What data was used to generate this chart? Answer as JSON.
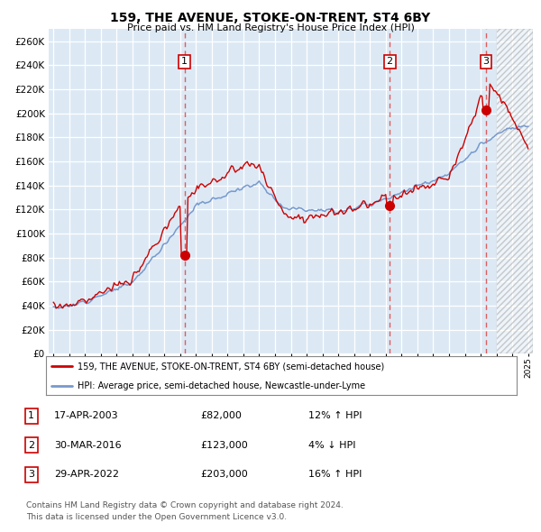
{
  "title": "159, THE AVENUE, STOKE-ON-TRENT, ST4 6BY",
  "subtitle": "Price paid vs. HM Land Registry's House Price Index (HPI)",
  "ylabel_ticks": [
    0,
    20000,
    40000,
    60000,
    80000,
    100000,
    120000,
    140000,
    160000,
    180000,
    200000,
    220000,
    240000,
    260000
  ],
  "xlim": [
    1994.7,
    2025.3
  ],
  "ylim": [
    0,
    270000
  ],
  "sale_dates": [
    2003.29,
    2016.25,
    2022.33
  ],
  "sale_prices": [
    82000,
    123000,
    203000
  ],
  "sale_labels": [
    "1",
    "2",
    "3"
  ],
  "sale_date_strs": [
    "17-APR-2003",
    "30-MAR-2016",
    "29-APR-2022"
  ],
  "sale_price_strs": [
    "£82,000",
    "£123,000",
    "£203,000"
  ],
  "sale_hpi_strs": [
    "12% ↑ HPI",
    "4% ↓ HPI",
    "16% ↑ HPI"
  ],
  "line_color_red": "#cc0000",
  "line_color_blue": "#7799cc",
  "bg_color": "#dce9f5",
  "hatch_color": "#bbbbbb",
  "legend_line1": "159, THE AVENUE, STOKE-ON-TRENT, ST4 6BY (semi-detached house)",
  "legend_line2": "HPI: Average price, semi-detached house, Newcastle-under-Lyme",
  "footer1": "Contains HM Land Registry data © Crown copyright and database right 2024.",
  "footer2": "This data is licensed under the Open Government Licence v3.0.",
  "hatch_start": 2023.0
}
